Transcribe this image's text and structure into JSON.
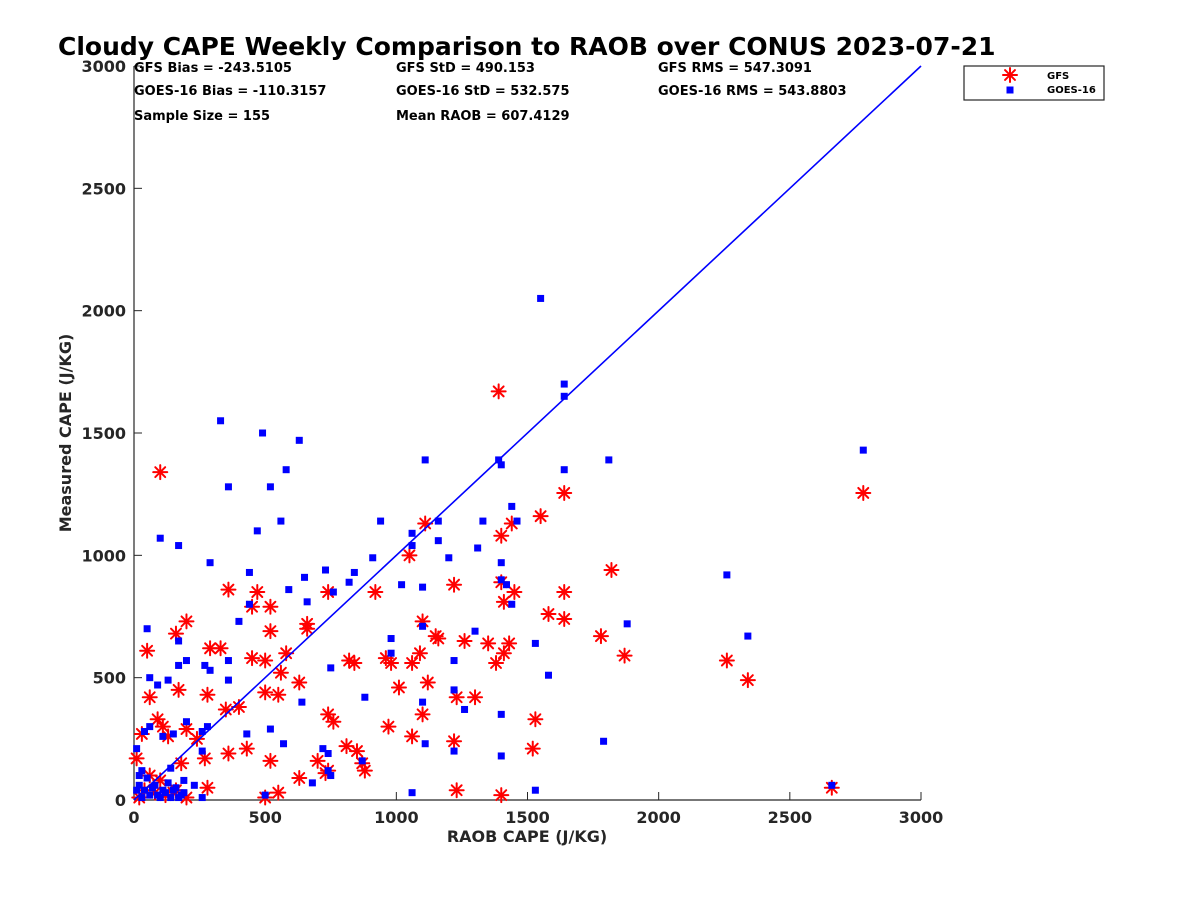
{
  "chart_data": {
    "type": "scatter",
    "title": "Cloudy CAPE Weekly Comparison to RAOB over CONUS 2023-07-21",
    "xlabel": "RAOB CAPE (J/KG)",
    "ylabel": "Measured CAPE (J/KG)",
    "xlim": [
      0,
      3000
    ],
    "ylim": [
      0,
      3000
    ],
    "xticks": [
      "0",
      "500",
      "1000",
      "1500",
      "2000",
      "2500",
      "3000"
    ],
    "yticks": [
      "0",
      "500",
      "1000",
      "1500",
      "2000",
      "2500",
      "3000"
    ],
    "grid": false,
    "legend_position": "top-right",
    "stats": [
      "GFS Bias = -243.5105",
      "GFS StD = 490.153",
      "GFS RMS = 547.3091",
      "GOES-16 Bias = -110.3157",
      "GOES-16 StD = 532.575",
      "GOES-16 RMS = 543.8803",
      "Sample Size = 155",
      "Mean RAOB = 607.4129"
    ],
    "colors": {
      "gfs": "#ff0000",
      "goes": "#0000ff",
      "line": "#0000ff"
    },
    "series": [
      {
        "name": "GFS",
        "marker": "asterisk",
        "points": [
          [
            100,
            1340
          ],
          [
            1390,
            1670
          ],
          [
            1640,
            1255
          ],
          [
            2780,
            1255
          ],
          [
            1550,
            1160
          ],
          [
            1110,
            1130
          ],
          [
            1440,
            1130
          ],
          [
            1400,
            1080
          ],
          [
            1050,
            1000
          ],
          [
            1820,
            940
          ],
          [
            360,
            860
          ],
          [
            470,
            850
          ],
          [
            740,
            850
          ],
          [
            920,
            850
          ],
          [
            1450,
            850
          ],
          [
            1640,
            850
          ],
          [
            1400,
            890
          ],
          [
            1220,
            880
          ],
          [
            450,
            790
          ],
          [
            520,
            790
          ],
          [
            1410,
            810
          ],
          [
            1580,
            760
          ],
          [
            1640,
            740
          ],
          [
            1780,
            670
          ],
          [
            200,
            730
          ],
          [
            160,
            680
          ],
          [
            660,
            720
          ],
          [
            660,
            700
          ],
          [
            1100,
            730
          ],
          [
            1150,
            670
          ],
          [
            1160,
            660
          ],
          [
            1350,
            640
          ],
          [
            1430,
            640
          ],
          [
            1410,
            600
          ],
          [
            290,
            620
          ],
          [
            330,
            620
          ],
          [
            580,
            600
          ],
          [
            500,
            570
          ],
          [
            450,
            580
          ],
          [
            820,
            570
          ],
          [
            840,
            560
          ],
          [
            960,
            580
          ],
          [
            980,
            560
          ],
          [
            1060,
            560
          ],
          [
            1090,
            600
          ],
          [
            1260,
            650
          ],
          [
            1380,
            560
          ],
          [
            1870,
            590
          ],
          [
            2260,
            570
          ],
          [
            50,
            610
          ],
          [
            560,
            520
          ],
          [
            1120,
            480
          ],
          [
            2340,
            490
          ],
          [
            630,
            480
          ],
          [
            1010,
            460
          ],
          [
            170,
            450
          ],
          [
            280,
            430
          ],
          [
            500,
            440
          ],
          [
            550,
            430
          ],
          [
            1230,
            420
          ],
          [
            1300,
            420
          ],
          [
            60,
            420
          ],
          [
            400,
            380
          ],
          [
            350,
            370
          ],
          [
            740,
            350
          ],
          [
            760,
            320
          ],
          [
            520,
            690
          ],
          [
            90,
            330
          ],
          [
            110,
            300
          ],
          [
            200,
            290
          ],
          [
            130,
            260
          ],
          [
            240,
            250
          ],
          [
            1100,
            350
          ],
          [
            1530,
            330
          ],
          [
            970,
            300
          ],
          [
            1060,
            260
          ],
          [
            1220,
            240
          ],
          [
            1520,
            210
          ],
          [
            30,
            270
          ],
          [
            10,
            170
          ],
          [
            180,
            150
          ],
          [
            270,
            170
          ],
          [
            360,
            190
          ],
          [
            430,
            210
          ],
          [
            700,
            160
          ],
          [
            810,
            220
          ],
          [
            850,
            200
          ],
          [
            520,
            160
          ],
          [
            740,
            120
          ],
          [
            880,
            120
          ],
          [
            870,
            150
          ],
          [
            630,
            90
          ],
          [
            550,
            30
          ],
          [
            730,
            110
          ],
          [
            1230,
            40
          ],
          [
            1400,
            20
          ],
          [
            2660,
            50
          ],
          [
            40,
            40
          ],
          [
            80,
            30
          ],
          [
            120,
            20
          ],
          [
            160,
            40
          ],
          [
            200,
            10
          ],
          [
            280,
            50
          ],
          [
            20,
            10
          ],
          [
            60,
            100
          ],
          [
            150,
            30
          ],
          [
            100,
            80
          ],
          [
            500,
            10
          ]
        ]
      },
      {
        "name": "GOES-16",
        "marker": "square",
        "points": [
          [
            1550,
            2050
          ],
          [
            1640,
            1700
          ],
          [
            1640,
            1650
          ],
          [
            2780,
            1430
          ],
          [
            330,
            1550
          ],
          [
            490,
            1500
          ],
          [
            630,
            1470
          ],
          [
            1110,
            1390
          ],
          [
            1390,
            1390
          ],
          [
            1400,
            1370
          ],
          [
            1810,
            1390
          ],
          [
            1640,
            1350
          ],
          [
            580,
            1350
          ],
          [
            360,
            1280
          ],
          [
            520,
            1280
          ],
          [
            1440,
            1200
          ],
          [
            1460,
            1140
          ],
          [
            560,
            1140
          ],
          [
            940,
            1140
          ],
          [
            1160,
            1140
          ],
          [
            1330,
            1140
          ],
          [
            470,
            1100
          ],
          [
            1060,
            1090
          ],
          [
            1160,
            1060
          ],
          [
            100,
            1070
          ],
          [
            170,
            1040
          ],
          [
            1060,
            1040
          ],
          [
            1310,
            1030
          ],
          [
            1400,
            970
          ],
          [
            910,
            990
          ],
          [
            1200,
            990
          ],
          [
            290,
            970
          ],
          [
            730,
            940
          ],
          [
            440,
            930
          ],
          [
            2260,
            920
          ],
          [
            650,
            910
          ],
          [
            820,
            890
          ],
          [
            1020,
            880
          ],
          [
            1100,
            870
          ],
          [
            1420,
            880
          ],
          [
            1400,
            900
          ],
          [
            840,
            930
          ],
          [
            590,
            860
          ],
          [
            760,
            850
          ],
          [
            660,
            810
          ],
          [
            440,
            800
          ],
          [
            1440,
            800
          ],
          [
            400,
            730
          ],
          [
            1880,
            720
          ],
          [
            1100,
            710
          ],
          [
            50,
            700
          ],
          [
            980,
            660
          ],
          [
            1300,
            690
          ],
          [
            2340,
            670
          ],
          [
            170,
            650
          ],
          [
            1530,
            640
          ],
          [
            980,
            600
          ],
          [
            200,
            570
          ],
          [
            360,
            570
          ],
          [
            1220,
            570
          ],
          [
            750,
            540
          ],
          [
            170,
            550
          ],
          [
            270,
            550
          ],
          [
            290,
            530
          ],
          [
            1580,
            510
          ],
          [
            60,
            500
          ],
          [
            130,
            490
          ],
          [
            90,
            470
          ],
          [
            360,
            490
          ],
          [
            1220,
            450
          ],
          [
            880,
            420
          ],
          [
            1100,
            400
          ],
          [
            1260,
            370
          ],
          [
            1400,
            350
          ],
          [
            640,
            400
          ],
          [
            200,
            320
          ],
          [
            60,
            300
          ],
          [
            280,
            300
          ],
          [
            520,
            290
          ],
          [
            150,
            270
          ],
          [
            260,
            280
          ],
          [
            40,
            280
          ],
          [
            110,
            260
          ],
          [
            430,
            270
          ],
          [
            570,
            230
          ],
          [
            1110,
            230
          ],
          [
            1790,
            240
          ],
          [
            720,
            210
          ],
          [
            740,
            190
          ],
          [
            1220,
            200
          ],
          [
            1400,
            180
          ],
          [
            10,
            210
          ],
          [
            140,
            130
          ],
          [
            190,
            80
          ],
          [
            260,
            200
          ],
          [
            230,
            60
          ],
          [
            20,
            100
          ],
          [
            870,
            160
          ],
          [
            740,
            120
          ],
          [
            750,
            100
          ],
          [
            680,
            70
          ],
          [
            1060,
            30
          ],
          [
            1530,
            40
          ],
          [
            2660,
            60
          ],
          [
            500,
            20
          ],
          [
            260,
            10
          ],
          [
            20,
            60
          ],
          [
            40,
            40
          ],
          [
            60,
            20
          ],
          [
            80,
            60
          ],
          [
            100,
            10
          ],
          [
            120,
            30
          ],
          [
            140,
            10
          ],
          [
            160,
            50
          ],
          [
            180,
            20
          ],
          [
            30,
            10
          ],
          [
            50,
            90
          ],
          [
            70,
            50
          ],
          [
            90,
            20
          ],
          [
            110,
            40
          ],
          [
            130,
            70
          ],
          [
            150,
            40
          ],
          [
            170,
            10
          ],
          [
            190,
            30
          ],
          [
            10,
            40
          ],
          [
            30,
            120
          ]
        ]
      }
    ],
    "reference_line": {
      "name": "1:1 line",
      "x": [
        0,
        3000
      ],
      "y": [
        0,
        3000
      ]
    }
  }
}
